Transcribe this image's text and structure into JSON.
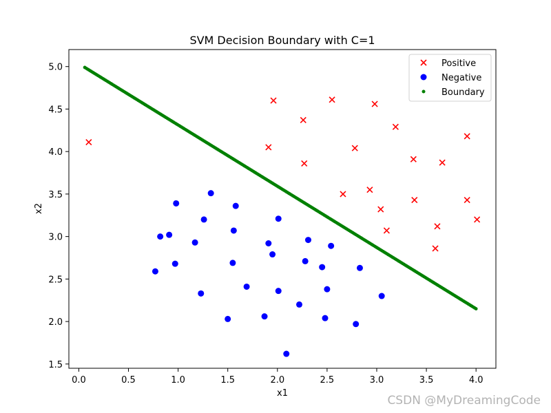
{
  "chart_data": {
    "type": "scatter",
    "title": "SVM Decision Boundary with C=1",
    "xlabel": "x1",
    "ylabel": "x2",
    "xlim": [
      -0.1,
      4.2
    ],
    "ylim": [
      1.45,
      5.2
    ],
    "xticks": [
      "0.0",
      "0.5",
      "1.0",
      "1.5",
      "2.0",
      "2.5",
      "3.0",
      "3.5",
      "4.0"
    ],
    "yticks": [
      "1.5",
      "2.0",
      "2.5",
      "3.0",
      "3.5",
      "4.0",
      "4.5",
      "5.0"
    ],
    "grid": false,
    "legend_position": "top-right",
    "series": [
      {
        "name": "Positive",
        "marker": "x",
        "color": "#ff0000",
        "points": [
          [
            0.1,
            4.11
          ],
          [
            1.91,
            4.05
          ],
          [
            1.96,
            4.6
          ],
          [
            2.26,
            4.37
          ],
          [
            2.27,
            3.86
          ],
          [
            2.55,
            4.61
          ],
          [
            2.66,
            3.5
          ],
          [
            2.78,
            4.04
          ],
          [
            2.93,
            3.55
          ],
          [
            2.98,
            4.56
          ],
          [
            3.04,
            3.32
          ],
          [
            3.1,
            3.07
          ],
          [
            3.19,
            4.29
          ],
          [
            3.37,
            3.91
          ],
          [
            3.38,
            3.43
          ],
          [
            3.59,
            2.86
          ],
          [
            3.61,
            3.12
          ],
          [
            3.66,
            3.87
          ],
          [
            3.91,
            4.18
          ],
          [
            3.91,
            3.43
          ],
          [
            4.01,
            3.2
          ]
        ]
      },
      {
        "name": "Negative",
        "marker": "o",
        "color": "#0000ff",
        "points": [
          [
            0.77,
            2.59
          ],
          [
            0.82,
            3.0
          ],
          [
            0.91,
            3.02
          ],
          [
            0.97,
            2.68
          ],
          [
            0.98,
            3.39
          ],
          [
            1.17,
            2.93
          ],
          [
            1.23,
            2.33
          ],
          [
            1.26,
            3.2
          ],
          [
            1.33,
            3.51
          ],
          [
            1.5,
            2.03
          ],
          [
            1.55,
            2.69
          ],
          [
            1.56,
            3.07
          ],
          [
            1.58,
            3.36
          ],
          [
            1.69,
            2.41
          ],
          [
            1.87,
            2.06
          ],
          [
            1.91,
            2.92
          ],
          [
            1.95,
            2.79
          ],
          [
            2.01,
            3.21
          ],
          [
            2.01,
            2.36
          ],
          [
            2.09,
            1.62
          ],
          [
            2.22,
            2.2
          ],
          [
            2.28,
            2.71
          ],
          [
            2.31,
            2.96
          ],
          [
            2.45,
            2.64
          ],
          [
            2.48,
            2.04
          ],
          [
            2.5,
            2.38
          ],
          [
            2.54,
            2.89
          ],
          [
            2.79,
            1.97
          ],
          [
            2.83,
            2.63
          ],
          [
            3.05,
            2.3
          ]
        ]
      },
      {
        "name": "Boundary",
        "marker": "dot",
        "color": "#008000",
        "x_start": 0.06,
        "y_start": 4.99,
        "x_end": 4.0,
        "y_end": 2.15,
        "count": 300
      }
    ]
  },
  "watermark": "CSDN @MyDreamingCode"
}
